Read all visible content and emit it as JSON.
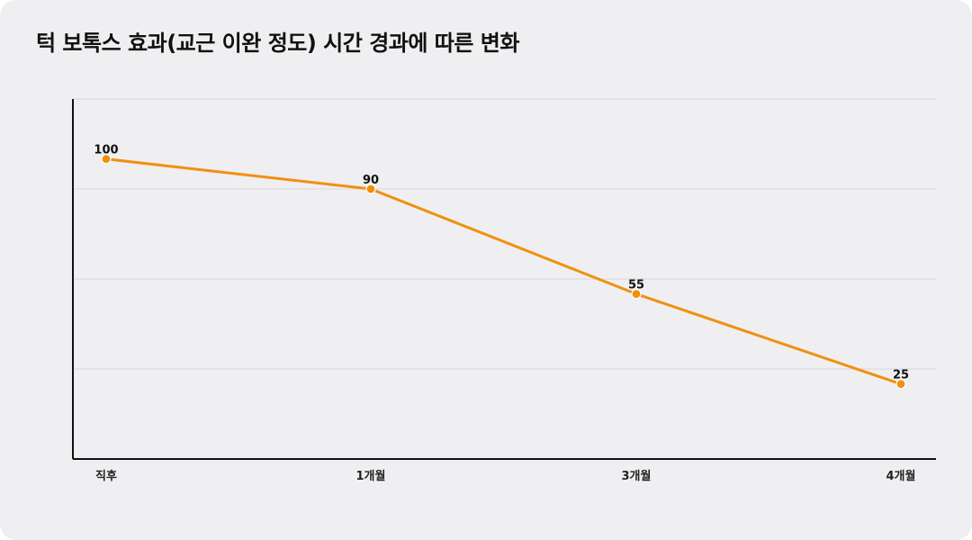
{
  "chart_data": {
    "type": "line",
    "title": "턱 보톡스 효과(교근 이완 정도) 시간 경과에 따른 변화",
    "xlabel": "",
    "ylabel": "",
    "categories": [
      "직후",
      "1개월",
      "3개월",
      "4개월"
    ],
    "series": [
      {
        "values": [
          100,
          90,
          55,
          25
        ]
      }
    ],
    "ylim": [
      0,
      120
    ],
    "grid": true,
    "y_tick_labels_shown": false,
    "legend": "none",
    "colors": {
      "line": "#f0900f",
      "marker": "#f0900f",
      "grid": "#d9d9dc",
      "axis": "#111111",
      "background": "#efeff1"
    }
  }
}
